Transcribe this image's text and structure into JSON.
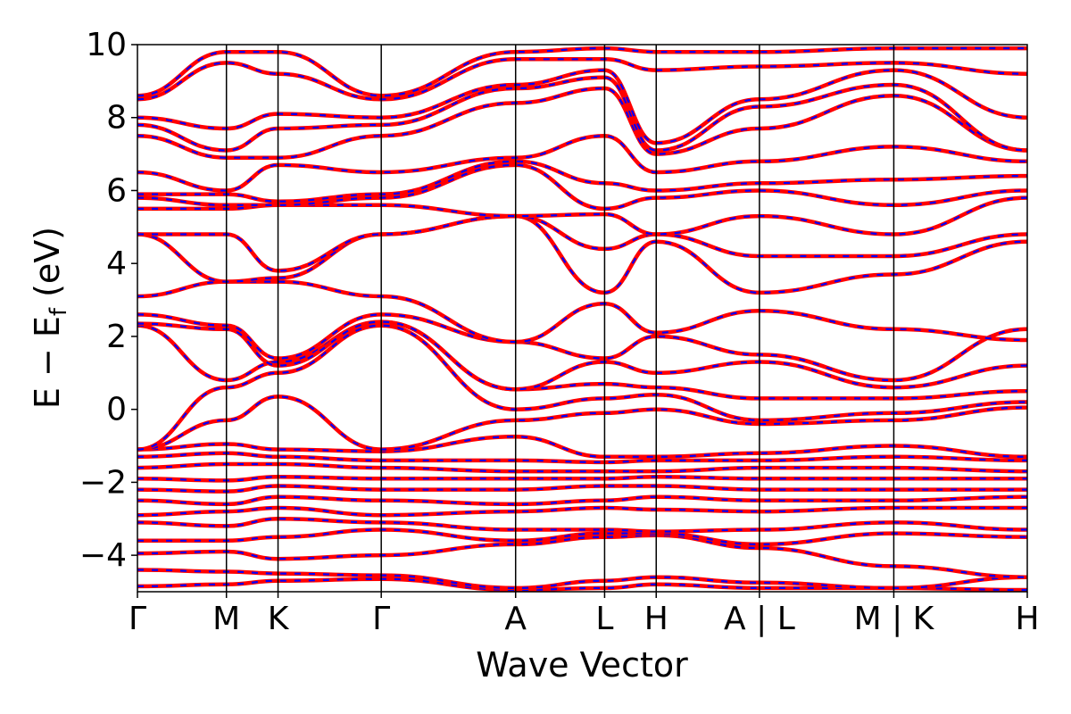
{
  "chart_data": {
    "type": "line",
    "xlabel": "Wave Vector",
    "ylabel_main": "E − E",
    "ylabel_sub": "f",
    "ylabel_unit": " (eV)",
    "ylim": [
      -5,
      10
    ],
    "yticks": [
      {
        "value": -4,
        "label": "−4"
      },
      {
        "value": -2,
        "label": "−2"
      },
      {
        "value": 0,
        "label": "0"
      },
      {
        "value": 2,
        "label": "2"
      },
      {
        "value": 4,
        "label": "4"
      },
      {
        "value": 6,
        "label": "6"
      },
      {
        "value": 8,
        "label": "8"
      },
      {
        "value": 10,
        "label": "10"
      }
    ],
    "kpath": [
      {
        "x": 0.0,
        "label": "Γ"
      },
      {
        "x": 1.0,
        "label": "M"
      },
      {
        "x": 1.58,
        "label": "K"
      },
      {
        "x": 2.74,
        "label": "Γ"
      },
      {
        "x": 4.25,
        "label": "A"
      },
      {
        "x": 5.25,
        "label": "L"
      },
      {
        "x": 5.83,
        "label": "H"
      },
      {
        "x": 6.99,
        "label": "A | L"
      },
      {
        "x": 8.5,
        "label": "M | K"
      },
      {
        "x": 10.0,
        "label": "H"
      }
    ],
    "series": [
      {
        "color": "#ff0000",
        "style": "solid"
      },
      {
        "color": "#0000ff",
        "style": "dashed"
      }
    ],
    "bands": [
      [
        -4.85,
        -4.8,
        -4.7,
        -4.65,
        -4.95,
        -4.9,
        -4.8,
        -4.9,
        -4.9,
        -4.95
      ],
      [
        -4.4,
        -4.45,
        -4.5,
        -4.55,
        -4.9,
        -4.7,
        -4.6,
        -4.75,
        -4.9,
        -4.6
      ],
      [
        -3.95,
        -3.9,
        -4.1,
        -4.0,
        -3.7,
        -3.5,
        -3.45,
        -3.8,
        -4.3,
        -4.6
      ],
      [
        -3.6,
        -3.6,
        -3.5,
        -3.3,
        -3.6,
        -3.4,
        -3.4,
        -3.7,
        -3.4,
        -3.5
      ],
      [
        -3.1,
        -3.2,
        -3.0,
        -3.1,
        -3.3,
        -3.3,
        -3.35,
        -3.3,
        -3.1,
        -3.3
      ],
      [
        -2.9,
        -2.8,
        -2.7,
        -2.9,
        -2.8,
        -2.7,
        -2.75,
        -2.8,
        -2.7,
        -2.7
      ],
      [
        -2.5,
        -2.6,
        -2.4,
        -2.5,
        -2.6,
        -2.5,
        -2.4,
        -2.5,
        -2.5,
        -2.4
      ],
      [
        -2.2,
        -2.25,
        -2.1,
        -2.2,
        -2.2,
        -2.1,
        -2.1,
        -2.2,
        -2.2,
        -2.2
      ],
      [
        -1.9,
        -1.95,
        -1.85,
        -1.9,
        -1.9,
        -1.9,
        -1.85,
        -1.9,
        -1.9,
        -1.9
      ],
      [
        -1.6,
        -1.5,
        -1.5,
        -1.6,
        -1.7,
        -1.7,
        -1.7,
        -1.6,
        -1.6,
        -1.7
      ],
      [
        -1.3,
        -1.2,
        -1.3,
        -1.4,
        -1.4,
        -1.45,
        -1.4,
        -1.4,
        -1.3,
        -1.4
      ],
      [
        -1.1,
        -0.95,
        -1.1,
        -1.15,
        -0.75,
        -1.3,
        -1.3,
        -1.2,
        -1.0,
        -1.3
      ],
      [
        -1.1,
        -0.3,
        0.35,
        -1.1,
        -0.3,
        -0.1,
        0.0,
        -0.4,
        -0.3,
        0.05
      ],
      [
        -1.1,
        0.6,
        1.0,
        2.3,
        0.0,
        0.3,
        0.4,
        -0.3,
        -0.1,
        0.2
      ],
      [
        2.3,
        0.8,
        1.3,
        2.4,
        0.55,
        0.7,
        0.6,
        0.3,
        0.3,
        0.5
      ],
      [
        2.35,
        2.2,
        1.2,
        2.4,
        0.55,
        1.3,
        1.0,
        1.3,
        0.6,
        1.2
      ],
      [
        2.6,
        2.3,
        1.4,
        2.6,
        1.85,
        1.4,
        2.0,
        1.5,
        0.8,
        2.2
      ],
      [
        3.1,
        3.5,
        3.5,
        3.1,
        1.85,
        2.9,
        2.1,
        2.7,
        2.2,
        1.9
      ],
      [
        4.8,
        3.5,
        3.6,
        4.8,
        5.3,
        3.2,
        4.6,
        3.2,
        3.7,
        4.6
      ],
      [
        4.8,
        4.8,
        3.8,
        4.8,
        5.3,
        4.4,
        4.8,
        4.2,
        4.2,
        4.8
      ],
      [
        5.5,
        5.5,
        5.6,
        5.6,
        5.3,
        5.35,
        4.8,
        5.3,
        4.8,
        5.8
      ],
      [
        5.8,
        5.6,
        5.6,
        5.8,
        6.7,
        5.5,
        5.8,
        6.0,
        5.6,
        6.0
      ],
      [
        5.9,
        5.9,
        5.7,
        5.9,
        6.8,
        6.2,
        6.0,
        6.2,
        6.3,
        6.4
      ],
      [
        6.5,
        6.0,
        6.7,
        6.5,
        6.9,
        7.5,
        6.5,
        6.8,
        7.2,
        6.8
      ],
      [
        7.5,
        6.9,
        6.9,
        7.5,
        8.4,
        8.8,
        7.0,
        7.7,
        8.6,
        7.1
      ],
      [
        7.8,
        7.1,
        7.7,
        7.8,
        8.8,
        9.1,
        7.1,
        8.3,
        8.9,
        7.1
      ],
      [
        8.0,
        7.7,
        8.1,
        8.0,
        8.9,
        9.3,
        7.3,
        8.5,
        9.3,
        8.0
      ],
      [
        8.5,
        9.5,
        9.2,
        8.5,
        9.6,
        9.6,
        9.3,
        9.4,
        9.5,
        9.2
      ],
      [
        8.6,
        9.8,
        9.8,
        8.6,
        9.8,
        9.9,
        9.8,
        9.8,
        9.9,
        9.9
      ]
    ]
  }
}
